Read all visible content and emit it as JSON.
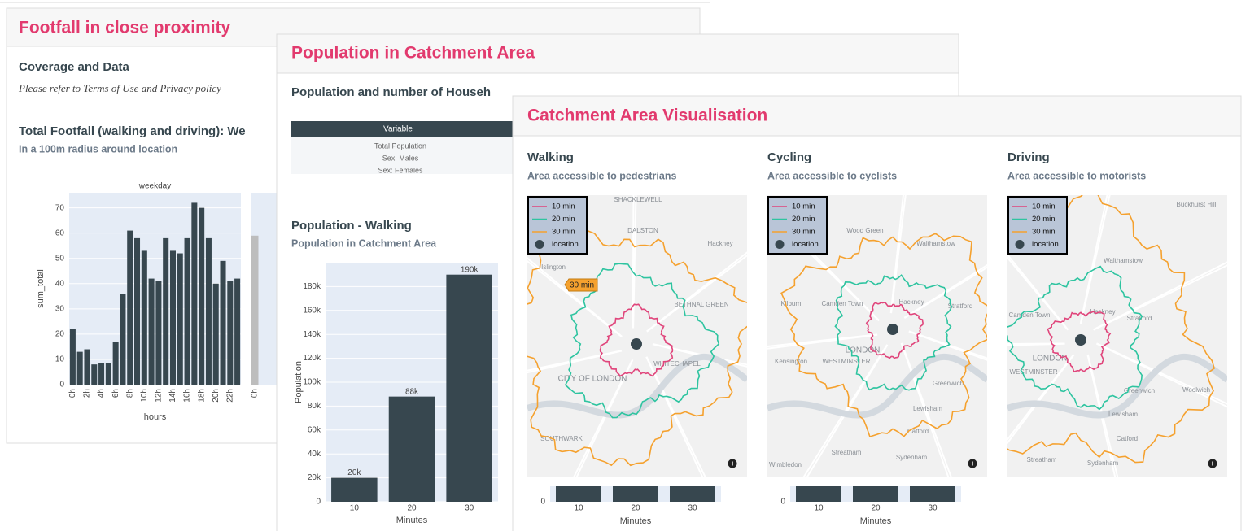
{
  "footfall_panel": {
    "title": "Footfall in close proximity",
    "coverage_heading": "Coverage and Data",
    "coverage_note": "Please refer to Terms of Use and Privacy policy",
    "chart_heading": "Total Footfall (walking and driving): We",
    "chart_subheading": "In a 100m radius around location"
  },
  "population_panel": {
    "title": "Population in Catchment Area",
    "table_heading": "Population and number of Househ",
    "table": {
      "header": "Variable",
      "rows": [
        "Total Population",
        "Sex: Males",
        "Sex: Females"
      ]
    },
    "chart_heading": "Population - Walking",
    "chart_subheading": "Population in Catchment Area"
  },
  "catchment_panel": {
    "title": "Catchment Area Visualisation",
    "legend": [
      "10 min",
      "20 min",
      "30 min",
      "location"
    ],
    "legend_colors": [
      "#e0457b",
      "#2ec4a0",
      "#f5a12e",
      "#37474f"
    ],
    "maps": [
      {
        "heading": "Walking",
        "subheading": "Area accessible to pedestrians",
        "tooltip": "30 min",
        "places": [
          "SHACKLEWELL",
          "DALSTON",
          "Hackney",
          "Islington",
          "BETHNAL GREEN",
          "CITY OF LONDON",
          "WHITECHAPEL",
          "SOUTHWARK"
        ]
      },
      {
        "heading": "Cycling",
        "subheading": "Area accessible to cyclists",
        "places": [
          "Wood Green",
          "Walthamstow",
          "Kilburn",
          "Camden Town",
          "Hackney",
          "Stratford",
          "LONDON",
          "WESTMINSTER",
          "Kensington",
          "Greenwich",
          "Lewisham",
          "Catford",
          "Streatham",
          "Sydenham",
          "Wimbledon"
        ]
      },
      {
        "heading": "Driving",
        "subheading": "Area accessible to motorists",
        "places": [
          "Buckhurst Hill",
          "Walthamstow",
          "Camden Town",
          "Hackney",
          "Stratford",
          "LONDON",
          "WESTMINSTER",
          "Greenwich",
          "Woolwich",
          "Lewisham",
          "Catford",
          "Streatham",
          "Sydenham"
        ]
      }
    ],
    "mini_chart": {
      "categories": [
        "10",
        "20",
        "30"
      ],
      "yticks": [
        0
      ],
      "xlabel": "Minutes"
    }
  },
  "chart_data": [
    {
      "type": "bar",
      "title": "weekday",
      "categories": [
        "0h",
        null,
        "2h",
        null,
        "4h",
        null,
        "6h",
        null,
        "8h",
        null,
        "10h",
        null,
        "12h",
        null,
        "14h",
        null,
        "16h",
        null,
        "18h",
        null,
        "20h",
        null,
        "22h",
        null
      ],
      "values": [
        22,
        13,
        14,
        8,
        8.5,
        8.5,
        17,
        36,
        61,
        58,
        53,
        42,
        41,
        58,
        53,
        52,
        58,
        72,
        70,
        58,
        40,
        49,
        41,
        42
      ],
      "color": "#37474f",
      "ylim": [
        0,
        76
      ],
      "yticks": [
        0,
        10,
        20,
        30,
        40,
        50,
        60,
        70
      ],
      "grid": true,
      "xlabel": "hours",
      "ylabel": "sum_total"
    },
    {
      "type": "bar",
      "categories": [
        "0h"
      ],
      "values": [
        59
      ],
      "color": "#bdbdbd",
      "ylim": [
        0,
        76
      ]
    },
    {
      "type": "bar",
      "categories": [
        "10",
        "20",
        "30"
      ],
      "values": [
        20000,
        88000,
        190000
      ],
      "value_labels": [
        "20k",
        "88k",
        "190k"
      ],
      "color": "#37474f",
      "ylim": [
        0,
        200000
      ],
      "yticks": [
        0,
        {
          "value": 20000,
          "label": "20k"
        },
        {
          "value": 40000,
          "label": "40k"
        },
        {
          "value": 60000,
          "label": "60k"
        },
        {
          "value": 80000,
          "label": "80k"
        },
        {
          "value": 100000,
          "label": "100k"
        },
        {
          "value": 120000,
          "label": "120k"
        },
        {
          "value": 140000,
          "label": "140k"
        },
        {
          "value": 160000,
          "label": "160k"
        },
        {
          "value": 180000,
          "label": "180k"
        }
      ],
      "grid": true,
      "xlabel": "Minutes",
      "ylabel": "Population"
    }
  ]
}
